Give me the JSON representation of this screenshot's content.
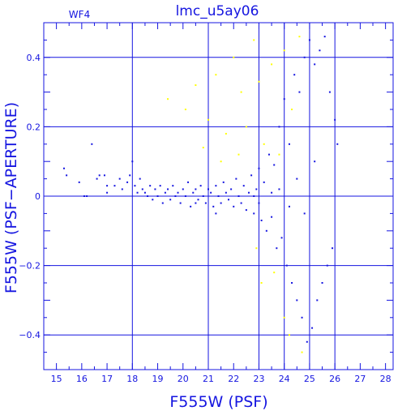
{
  "colors": {
    "frame": "#1515e0",
    "grid": "#1515e0",
    "main_points": "#1515e0",
    "secondary_points": "#ffff00",
    "background": "#ffffff"
  },
  "chart_data": {
    "type": "scatter",
    "title": "lmc_u5ay06",
    "panel_label": "WF4",
    "xlabel": "F555W (PSF)",
    "ylabel": "F555W (PSF−APERTURE)",
    "xlim": [
      14.5,
      28.3
    ],
    "ylim": [
      -0.5,
      0.5
    ],
    "x_ticks": [
      15,
      16,
      17,
      18,
      19,
      20,
      21,
      22,
      23,
      24,
      25,
      26,
      27,
      28
    ],
    "y_ticks": [
      -0.4,
      -0.2,
      0,
      0.2,
      0.4
    ],
    "x_gridlines": [
      18,
      21,
      23,
      24,
      25,
      26
    ],
    "y_gridlines": [
      -0.4,
      -0.2,
      0,
      0.2,
      0.4
    ],
    "x_tick_labels": [
      "15",
      "16",
      "17",
      "18",
      "19",
      "20",
      "21",
      "22",
      "23",
      "24",
      "25",
      "26",
      "27",
      "28"
    ],
    "y_tick_labels": [
      "−0.4",
      "−0.2",
      "0",
      "0.2",
      "0.4"
    ],
    "series": [
      {
        "color": "#1515e0",
        "points": [
          [
            15.3,
            0.08
          ],
          [
            15.4,
            0.06
          ],
          [
            15.9,
            0.04
          ],
          [
            16.1,
            0.0
          ],
          [
            16.2,
            0.0
          ],
          [
            16.4,
            0.15
          ],
          [
            16.6,
            0.05
          ],
          [
            16.7,
            0.06
          ],
          [
            16.9,
            0.06
          ],
          [
            17.0,
            0.03
          ],
          [
            17.0,
            0.01
          ],
          [
            17.3,
            0.03
          ],
          [
            17.5,
            0.05
          ],
          [
            17.6,
            0.02
          ],
          [
            17.8,
            0.04
          ],
          [
            17.9,
            0.06
          ],
          [
            18.0,
            0.1
          ],
          [
            18.1,
            0.03
          ],
          [
            18.2,
            0.01
          ],
          [
            18.3,
            0.05
          ],
          [
            18.4,
            0.02
          ],
          [
            18.5,
            0.01
          ],
          [
            18.6,
            0.0
          ],
          [
            18.7,
            0.03
          ],
          [
            18.8,
            -0.01
          ],
          [
            18.9,
            0.02
          ],
          [
            19.0,
            0.0
          ],
          [
            19.1,
            0.03
          ],
          [
            19.2,
            -0.02
          ],
          [
            19.3,
            0.01
          ],
          [
            19.4,
            0.02
          ],
          [
            19.5,
            -0.01
          ],
          [
            19.6,
            0.03
          ],
          [
            19.7,
            0.0
          ],
          [
            19.8,
            0.01
          ],
          [
            19.9,
            -0.02
          ],
          [
            20.0,
            0.02
          ],
          [
            20.1,
            0.0
          ],
          [
            20.2,
            0.04
          ],
          [
            20.3,
            -0.03
          ],
          [
            20.4,
            0.01
          ],
          [
            20.5,
            0.02
          ],
          [
            20.6,
            -0.01
          ],
          [
            20.7,
            0.03
          ],
          [
            20.8,
            0.0
          ],
          [
            20.9,
            -0.02
          ],
          [
            21.0,
            0.02
          ],
          [
            21.1,
            0.01
          ],
          [
            21.2,
            -0.03
          ],
          [
            21.3,
            0.03
          ],
          [
            21.4,
            0.0
          ],
          [
            21.5,
            -0.02
          ],
          [
            21.6,
            0.04
          ],
          [
            21.7,
            0.01
          ],
          [
            21.8,
            -0.01
          ],
          [
            21.9,
            0.02
          ],
          [
            22.0,
            -0.03
          ],
          [
            22.1,
            0.05
          ],
          [
            22.2,
            0.0
          ],
          [
            22.3,
            -0.02
          ],
          [
            22.4,
            0.03
          ],
          [
            22.5,
            -0.04
          ],
          [
            22.6,
            0.01
          ],
          [
            22.7,
            0.06
          ],
          [
            22.8,
            -0.05
          ],
          [
            22.9,
            0.02
          ],
          [
            23.0,
            -0.02
          ],
          [
            23.0,
            0.08
          ],
          [
            23.1,
            -0.07
          ],
          [
            23.2,
            0.04
          ],
          [
            23.3,
            -0.1
          ],
          [
            23.4,
            0.12
          ],
          [
            23.5,
            -0.06
          ],
          [
            23.6,
            0.09
          ],
          [
            23.7,
            -0.15
          ],
          [
            23.8,
            0.2
          ],
          [
            23.9,
            -0.12
          ],
          [
            24.0,
            0.28
          ],
          [
            24.1,
            -0.2
          ],
          [
            24.2,
            0.15
          ],
          [
            24.3,
            -0.25
          ],
          [
            24.4,
            0.35
          ],
          [
            24.5,
            -0.3
          ],
          [
            24.6,
            0.3
          ],
          [
            24.7,
            -0.35
          ],
          [
            24.8,
            0.4
          ],
          [
            24.9,
            -0.42
          ],
          [
            25.0,
            0.45
          ],
          [
            25.1,
            -0.38
          ],
          [
            25.2,
            0.38
          ],
          [
            25.3,
            -0.3
          ],
          [
            25.4,
            0.42
          ],
          [
            25.5,
            -0.25
          ],
          [
            25.6,
            0.46
          ],
          [
            25.7,
            -0.2
          ],
          [
            25.8,
            0.3
          ],
          [
            25.9,
            -0.15
          ],
          [
            26.0,
            0.22
          ],
          [
            26.1,
            0.15
          ],
          [
            24.5,
            0.05
          ],
          [
            24.8,
            -0.05
          ],
          [
            25.2,
            0.1
          ],
          [
            23.8,
            0.02
          ],
          [
            24.2,
            -0.03
          ],
          [
            23.5,
            0.01
          ],
          [
            22.8,
            0.0
          ],
          [
            20.5,
            -0.02
          ],
          [
            21.3,
            -0.05
          ]
        ]
      },
      {
        "color": "#ffff00",
        "points": [
          [
            19.4,
            0.28
          ],
          [
            20.1,
            0.25
          ],
          [
            20.5,
            0.32
          ],
          [
            21.0,
            0.22
          ],
          [
            21.3,
            0.35
          ],
          [
            21.7,
            0.18
          ],
          [
            22.0,
            0.4
          ],
          [
            22.3,
            0.3
          ],
          [
            22.5,
            0.2
          ],
          [
            22.8,
            0.45
          ],
          [
            23.0,
            0.33
          ],
          [
            23.2,
            0.15
          ],
          [
            23.5,
            0.38
          ],
          [
            23.8,
            0.12
          ],
          [
            24.0,
            0.42
          ],
          [
            24.3,
            0.25
          ],
          [
            24.6,
            0.46
          ],
          [
            21.5,
            0.1
          ],
          [
            22.2,
            0.12
          ],
          [
            20.8,
            0.14
          ],
          [
            23.1,
            -0.25
          ],
          [
            24.0,
            -0.35
          ],
          [
            24.7,
            -0.45
          ],
          [
            24.2,
            -0.4
          ],
          [
            23.6,
            -0.22
          ],
          [
            22.9,
            -0.15
          ]
        ]
      }
    ]
  }
}
